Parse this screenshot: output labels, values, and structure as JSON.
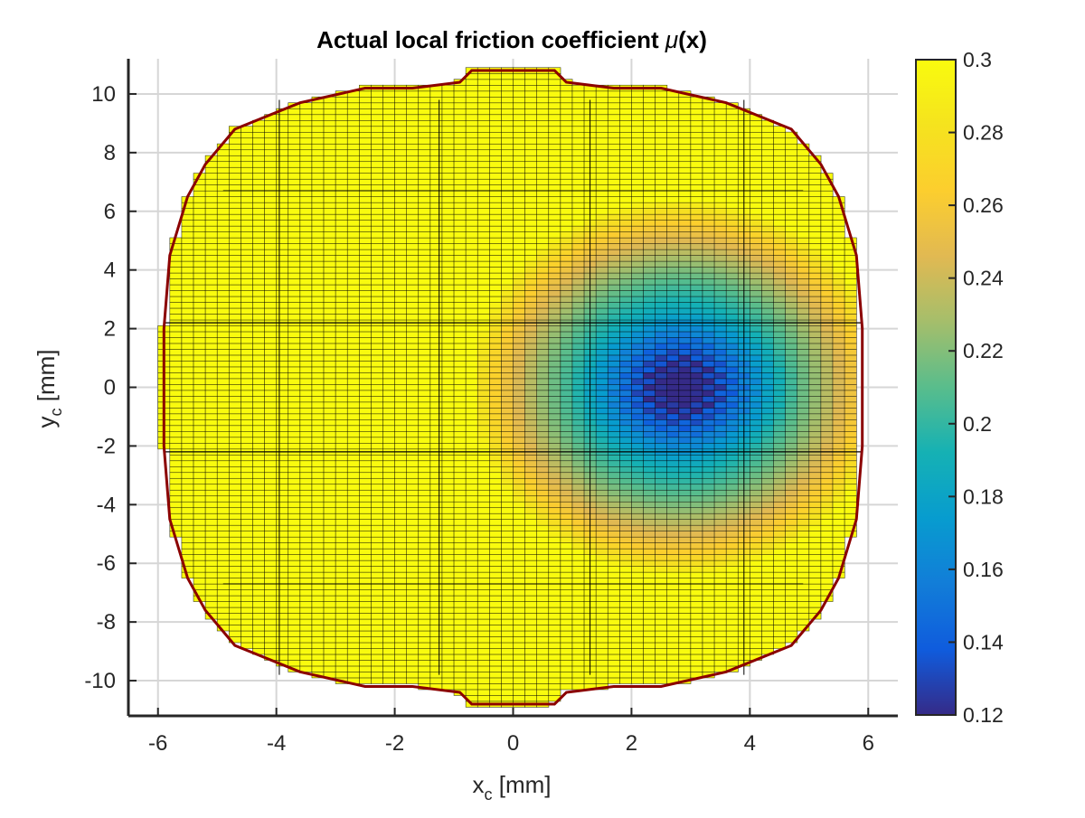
{
  "chart_data": {
    "type": "heatmap",
    "title_main": "Actual local friction coefficient ",
    "title_mu": "μ",
    "title_arg": "(x)",
    "xlabel_base": "x",
    "xlabel_sub": "c",
    "xlabel_unit": " [mm]",
    "ylabel_base": "y",
    "ylabel_sub": "c",
    "ylabel_unit": " [mm]",
    "xlim": [
      -6.5,
      6.5
    ],
    "ylim": [
      -11.2,
      11.2
    ],
    "xticks": [
      -6,
      -4,
      -2,
      0,
      2,
      4,
      6
    ],
    "xtick_labels": [
      "-6",
      "-4",
      "-2",
      "0",
      "2",
      "4",
      "6"
    ],
    "yticks": [
      -10,
      -8,
      -6,
      -4,
      -2,
      0,
      2,
      4,
      6,
      8,
      10
    ],
    "ytick_labels": [
      "-10",
      "-8",
      "-6",
      "-4",
      "-2",
      "0",
      "2",
      "4",
      "6",
      "8",
      "10"
    ],
    "grid": true,
    "colormap": "parula",
    "clim": [
      0.12,
      0.3
    ],
    "colorbar_ticks": [
      0.12,
      0.14,
      0.16,
      0.18,
      0.2,
      0.22,
      0.24,
      0.26,
      0.28,
      0.3
    ],
    "colorbar_tick_labels": [
      "0.12",
      "0.14",
      "0.16",
      "0.18",
      "0.2",
      "0.22",
      "0.24",
      "0.26",
      "0.28",
      "0.3"
    ],
    "field": {
      "cell_size_mm": 0.2,
      "x_extent": [
        -5.9,
        5.9
      ],
      "y_extent": [
        -10.8,
        10.8
      ],
      "background_value": 0.3,
      "worn_region_center": [
        2.8,
        0
      ],
      "worn_region_minimum": 0.12
    },
    "boundary_color": "#8b0000",
    "mesh_line_color": "#000000"
  }
}
